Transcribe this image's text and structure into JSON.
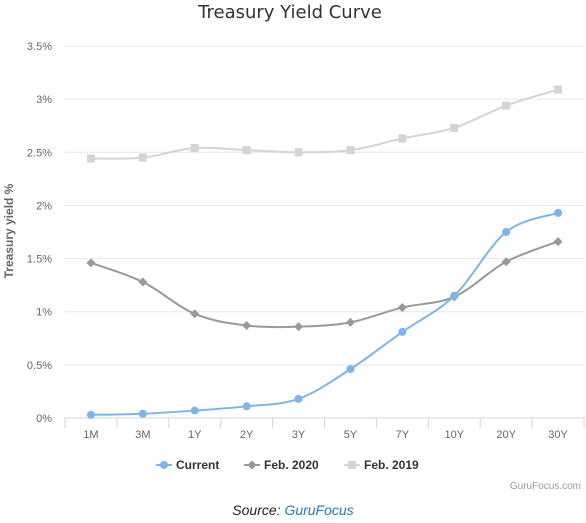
{
  "chart_data": {
    "type": "line",
    "title": "Treasury Yield Curve",
    "xlabel": "",
    "ylabel": "Treasury yield %",
    "categories": [
      "1M",
      "3M",
      "1Y",
      "2Y",
      "3Y",
      "5Y",
      "7Y",
      "10Y",
      "20Y",
      "30Y"
    ],
    "ylim": [
      0,
      3.5
    ],
    "yticks": [
      "0%",
      "0.5%",
      "1%",
      "1.5%",
      "2%",
      "2.5%",
      "3%",
      "3.5%"
    ],
    "grid": true,
    "legend_position": "bottom",
    "series": [
      {
        "name": "Current",
        "color": "#7cb5ec",
        "marker": "circle",
        "values": [
          0.03,
          0.04,
          0.07,
          0.11,
          0.18,
          0.46,
          0.81,
          1.15,
          1.75,
          1.93
        ]
      },
      {
        "name": "Feb. 2020",
        "color": "#999999",
        "marker": "diamond",
        "values": [
          1.46,
          1.28,
          0.98,
          0.87,
          0.86,
          0.9,
          1.04,
          1.14,
          1.47,
          1.66
        ]
      },
      {
        "name": "Feb. 2019",
        "color": "#d4d4d4",
        "marker": "square",
        "values": [
          2.44,
          2.45,
          2.54,
          2.52,
          2.5,
          2.52,
          2.63,
          2.73,
          2.94,
          3.09
        ]
      }
    ],
    "credit": "GuruFocus.com"
  },
  "source": {
    "prefix": "Source:",
    "link": "GuruFocus"
  }
}
